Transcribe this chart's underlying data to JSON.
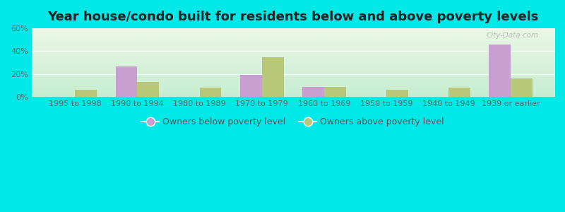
{
  "title": "Year house/condo built for residents below and above poverty levels",
  "categories": [
    "1995 to 1998",
    "1990 to 1994",
    "1980 to 1989",
    "1970 to 1979",
    "1960 to 1969",
    "1950 to 1959",
    "1940 to 1949",
    "1939 or earlier"
  ],
  "below_poverty": [
    0,
    27,
    0,
    19,
    9,
    0,
    0,
    46
  ],
  "above_poverty": [
    6,
    13,
    8,
    35,
    9,
    6,
    8,
    16
  ],
  "below_color": "#c8a0d0",
  "above_color": "#b8c878",
  "background_outer": "#00e8e8",
  "background_plot_grad_top": "#d8efe0",
  "background_plot_grad_bottom": "#f0faf0",
  "ylim": [
    0,
    60
  ],
  "yticks": [
    0,
    20,
    40,
    60
  ],
  "ytick_labels": [
    "0%",
    "20%",
    "40%",
    "60%"
  ],
  "legend_below": "Owners below poverty level",
  "legend_above": "Owners above poverty level",
  "title_fontsize": 13,
  "tick_fontsize": 8,
  "legend_fontsize": 9,
  "bar_width": 0.35,
  "watermark": "City-Data.com"
}
